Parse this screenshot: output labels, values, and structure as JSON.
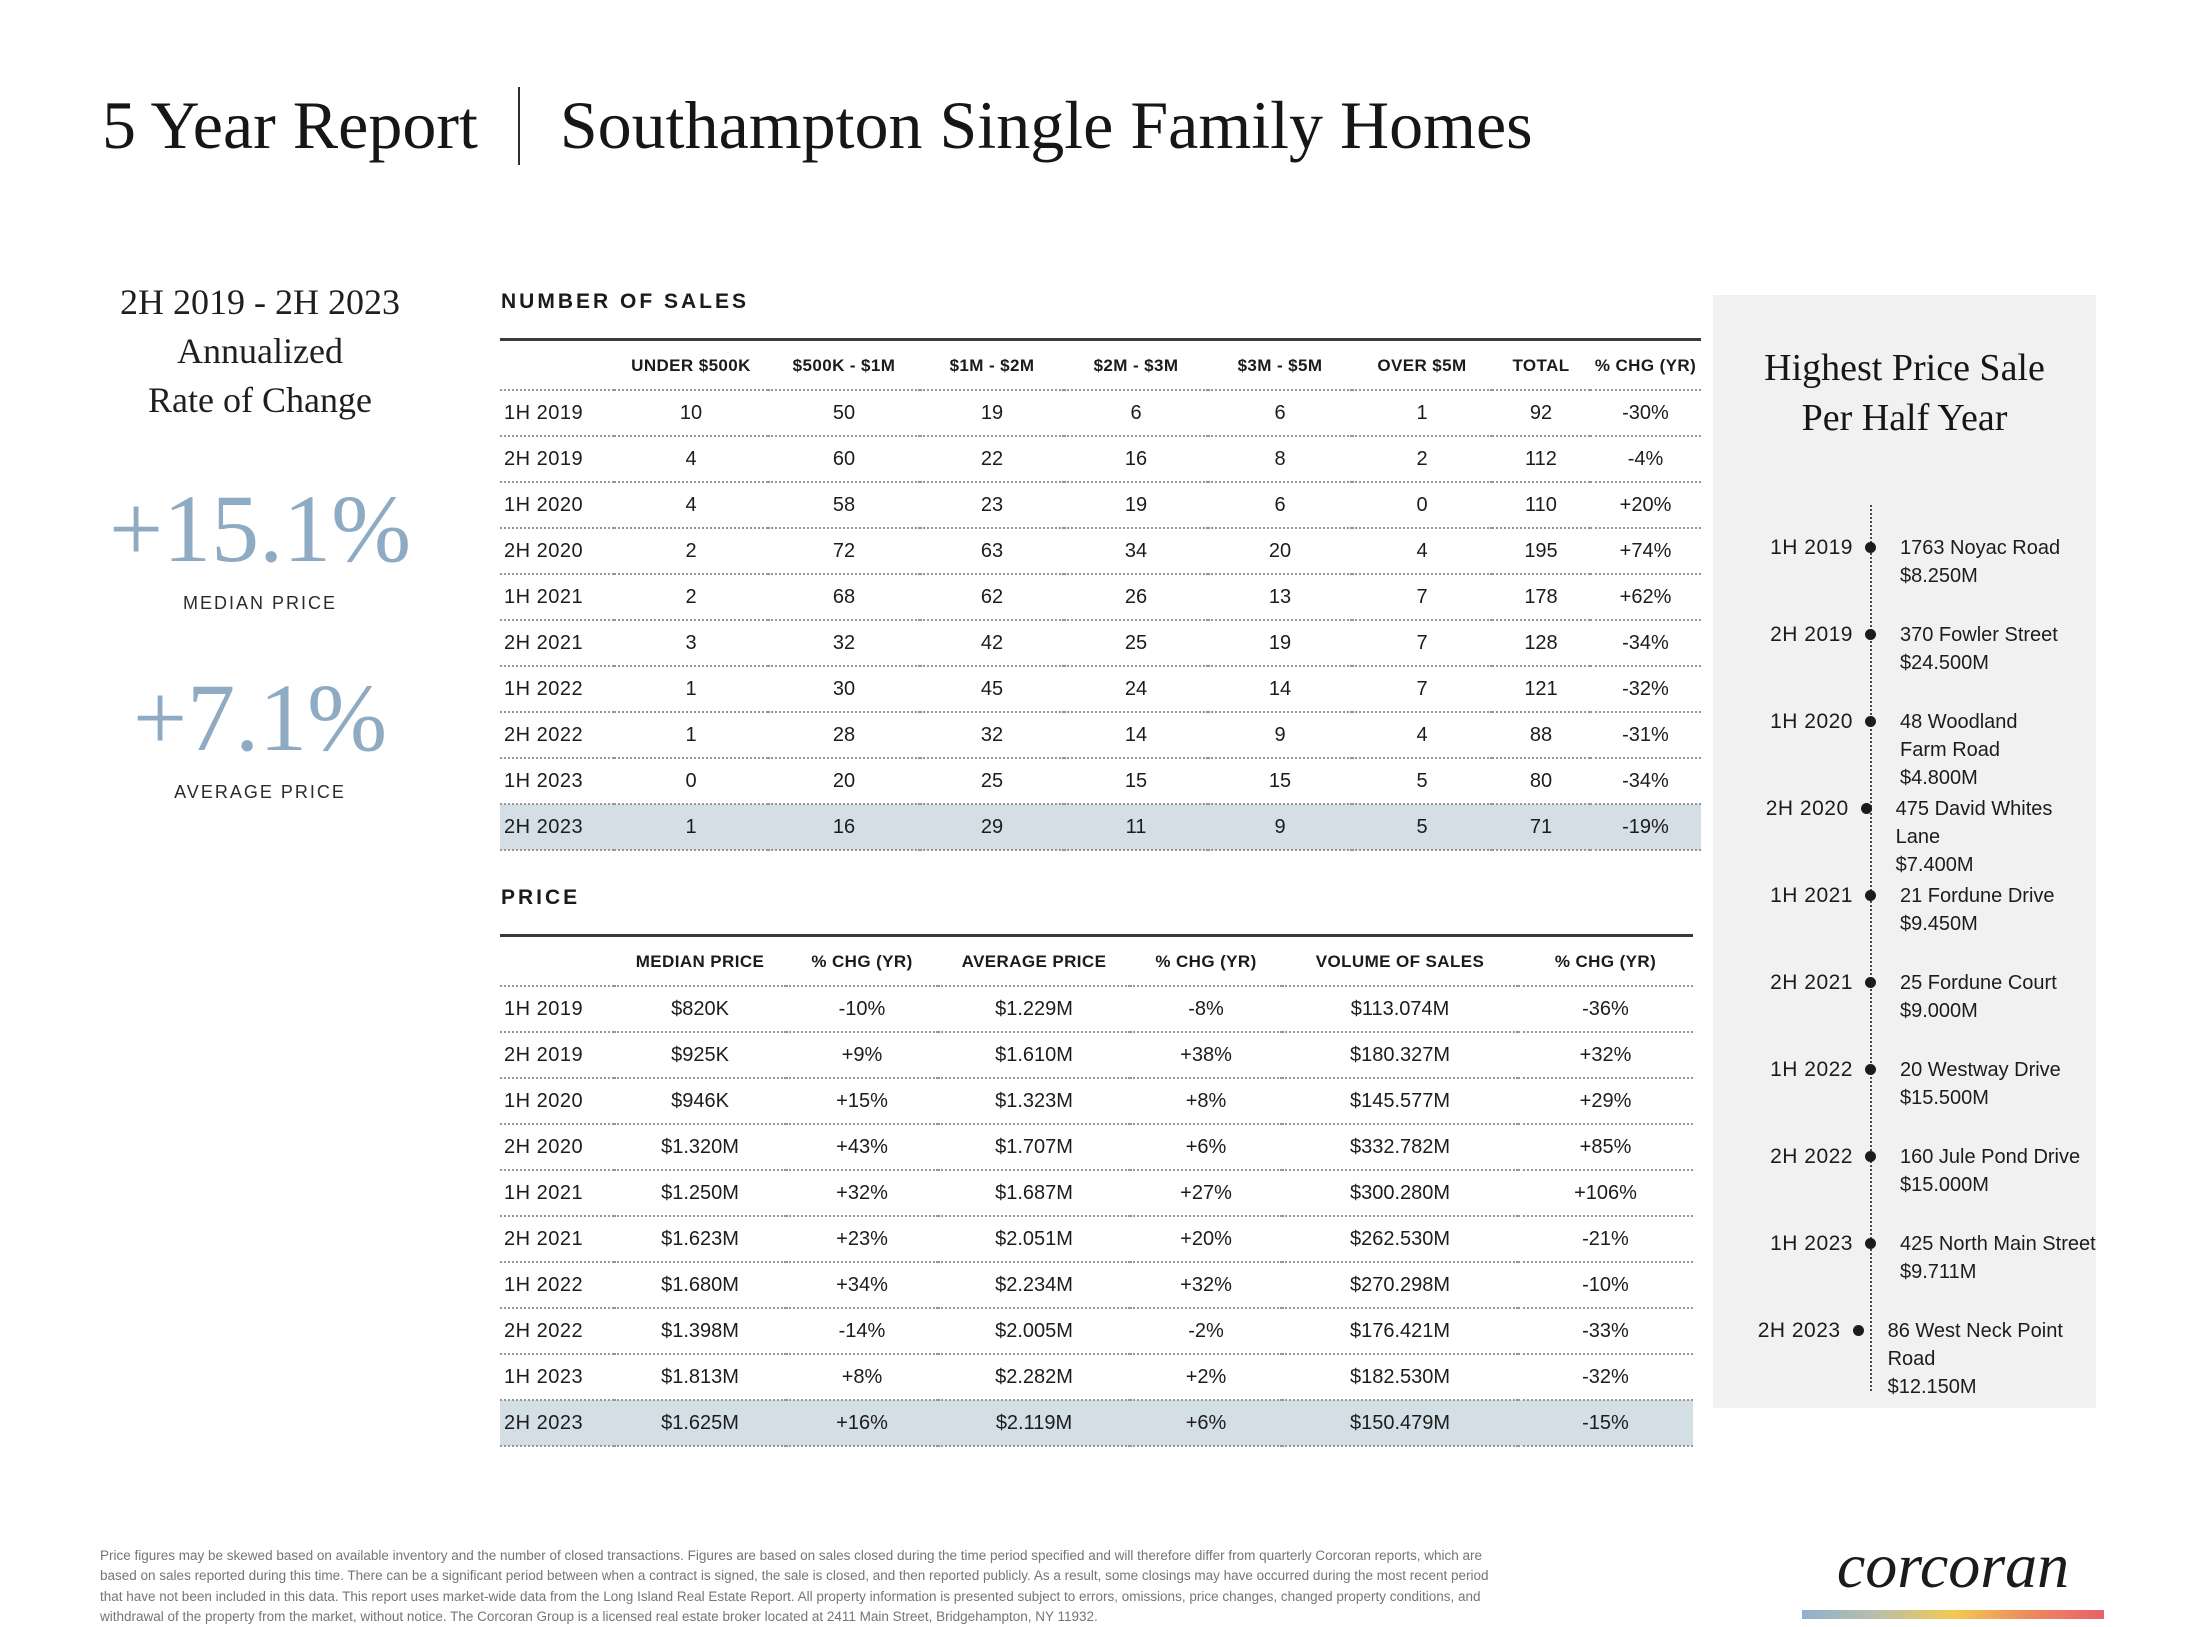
{
  "title": {
    "left": "5 Year Report",
    "right": "Southampton Single Family Homes"
  },
  "summary": {
    "heading_line1": "2H 2019 - 2H 2023",
    "heading_line2": "Annualized",
    "heading_line3": "Rate of Change",
    "accent_color": "#8fabc4",
    "stats": [
      {
        "value": "+15.1%",
        "label": "MEDIAN PRICE"
      },
      {
        "value": "+7.1%",
        "label": "AVERAGE PRICE"
      }
    ]
  },
  "highlight_color": "#d3dee5",
  "sales_table": {
    "section_title": "NUMBER OF SALES",
    "columns": [
      "",
      "UNDER $500K",
      "$500K - $1M",
      "$1M - $2M",
      "$2M - $3M",
      "$3M - $5M",
      "OVER $5M",
      "TOTAL",
      "% CHG (YR)"
    ],
    "rows": [
      {
        "period": "1H 2019",
        "values": [
          "10",
          "50",
          "19",
          "6",
          "6",
          "1",
          "92",
          "-30%"
        ],
        "highlight": false
      },
      {
        "period": "2H 2019",
        "values": [
          "4",
          "60",
          "22",
          "16",
          "8",
          "2",
          "112",
          "-4%"
        ],
        "highlight": false
      },
      {
        "period": "1H 2020",
        "values": [
          "4",
          "58",
          "23",
          "19",
          "6",
          "0",
          "110",
          "+20%"
        ],
        "highlight": false
      },
      {
        "period": "2H 2020",
        "values": [
          "2",
          "72",
          "63",
          "34",
          "20",
          "4",
          "195",
          "+74%"
        ],
        "highlight": false
      },
      {
        "period": "1H 2021",
        "values": [
          "2",
          "68",
          "62",
          "26",
          "13",
          "7",
          "178",
          "+62%"
        ],
        "highlight": false
      },
      {
        "period": "2H 2021",
        "values": [
          "3",
          "32",
          "42",
          "25",
          "19",
          "7",
          "128",
          "-34%"
        ],
        "highlight": false
      },
      {
        "period": "1H 2022",
        "values": [
          "1",
          "30",
          "45",
          "24",
          "14",
          "7",
          "121",
          "-32%"
        ],
        "highlight": false
      },
      {
        "period": "2H 2022",
        "values": [
          "1",
          "28",
          "32",
          "14",
          "9",
          "4",
          "88",
          "-31%"
        ],
        "highlight": false
      },
      {
        "period": "1H 2023",
        "values": [
          "0",
          "20",
          "25",
          "15",
          "15",
          "5",
          "80",
          "-34%"
        ],
        "highlight": false
      },
      {
        "period": "2H 2023",
        "values": [
          "1",
          "16",
          "29",
          "11",
          "9",
          "5",
          "71",
          "-19%"
        ],
        "highlight": true
      }
    ]
  },
  "price_table": {
    "section_title": "PRICE",
    "columns": [
      "",
      "MEDIAN PRICE",
      "% CHG (YR)",
      "AVERAGE PRICE",
      "% CHG (YR)",
      "VOLUME OF SALES",
      "% CHG (YR)"
    ],
    "rows": [
      {
        "period": "1H 2019",
        "values": [
          "$820K",
          "-10%",
          "$1.229M",
          "-8%",
          "$113.074M",
          "-36%"
        ],
        "highlight": false
      },
      {
        "period": "2H 2019",
        "values": [
          "$925K",
          "+9%",
          "$1.610M",
          "+38%",
          "$180.327M",
          "+32%"
        ],
        "highlight": false
      },
      {
        "period": "1H 2020",
        "values": [
          "$946K",
          "+15%",
          "$1.323M",
          "+8%",
          "$145.577M",
          "+29%"
        ],
        "highlight": false
      },
      {
        "period": "2H 2020",
        "values": [
          "$1.320M",
          "+43%",
          "$1.707M",
          "+6%",
          "$332.782M",
          "+85%"
        ],
        "highlight": false
      },
      {
        "period": "1H 2021",
        "values": [
          "$1.250M",
          "+32%",
          "$1.687M",
          "+27%",
          "$300.280M",
          "+106%"
        ],
        "highlight": false
      },
      {
        "period": "2H 2021",
        "values": [
          "$1.623M",
          "+23%",
          "$2.051M",
          "+20%",
          "$262.530M",
          "-21%"
        ],
        "highlight": false
      },
      {
        "period": "1H 2022",
        "values": [
          "$1.680M",
          "+34%",
          "$2.234M",
          "+32%",
          "$270.298M",
          "-10%"
        ],
        "highlight": false
      },
      {
        "period": "2H 2022",
        "values": [
          "$1.398M",
          "-14%",
          "$2.005M",
          "-2%",
          "$176.421M",
          "-33%"
        ],
        "highlight": false
      },
      {
        "period": "1H 2023",
        "values": [
          "$1.813M",
          "+8%",
          "$2.282M",
          "+2%",
          "$182.530M",
          "-32%"
        ],
        "highlight": false
      },
      {
        "period": "2H 2023",
        "values": [
          "$1.625M",
          "+16%",
          "$2.119M",
          "+6%",
          "$150.479M",
          "-15%"
        ],
        "highlight": true
      }
    ]
  },
  "highest_price_panel": {
    "background": "#f1f1f2",
    "title_line1": "Highest Price Sale",
    "title_line2": "Per Half Year",
    "entries": [
      {
        "period": "1H 2019",
        "address_lines": [
          "1763 Noyac Road"
        ],
        "price": "$8.250M"
      },
      {
        "period": "2H 2019",
        "address_lines": [
          "370 Fowler Street"
        ],
        "price": "$24.500M"
      },
      {
        "period": "1H 2020",
        "address_lines": [
          "48 Woodland",
          "Farm Road"
        ],
        "price": "$4.800M"
      },
      {
        "period": "2H 2020",
        "address_lines": [
          "475 David Whites Lane"
        ],
        "price": "$7.400M"
      },
      {
        "period": "1H 2021",
        "address_lines": [
          "21 Fordune Drive"
        ],
        "price": "$9.450M"
      },
      {
        "period": "2H 2021",
        "address_lines": [
          "25 Fordune Court"
        ],
        "price": "$9.000M"
      },
      {
        "period": "1H 2022",
        "address_lines": [
          "20 Westway Drive"
        ],
        "price": "$15.500M"
      },
      {
        "period": "2H 2022",
        "address_lines": [
          "160 Jule Pond Drive"
        ],
        "price": "$15.000M"
      },
      {
        "period": "1H 2023",
        "address_lines": [
          "425 North Main Street"
        ],
        "price": "$9.711M"
      },
      {
        "period": "2H 2023",
        "address_lines": [
          "86 West Neck Point Road"
        ],
        "price": "$12.150M"
      }
    ]
  },
  "footer": {
    "disclaimer": "Price figures may be skewed based on available inventory and the number of closed transactions. Figures are based on sales closed during the time period specified and will therefore differ from quarterly Corcoran reports, which are based on sales reported during this time. There can be a significant period between when a contract is signed, the sale is closed, and then reported publicly. As a result, some closings may have occurred during the most recent period that have not been included in this data. This report uses market-wide data from the Long Island Real Estate Report. All property information is presented subject to errors, omissions, price changes, changed property conditions, and withdrawal of the property from the market, without notice. The Corcoran Group is a licensed real estate broker located at 2411 Main Street, Bridgehampton, NY 11932.",
    "brand": "corcoran",
    "brand_bar_colors": [
      "#8fb0cd",
      "#b9bfa9",
      "#f2ca51",
      "#ee8a5e",
      "#e8616b"
    ]
  }
}
